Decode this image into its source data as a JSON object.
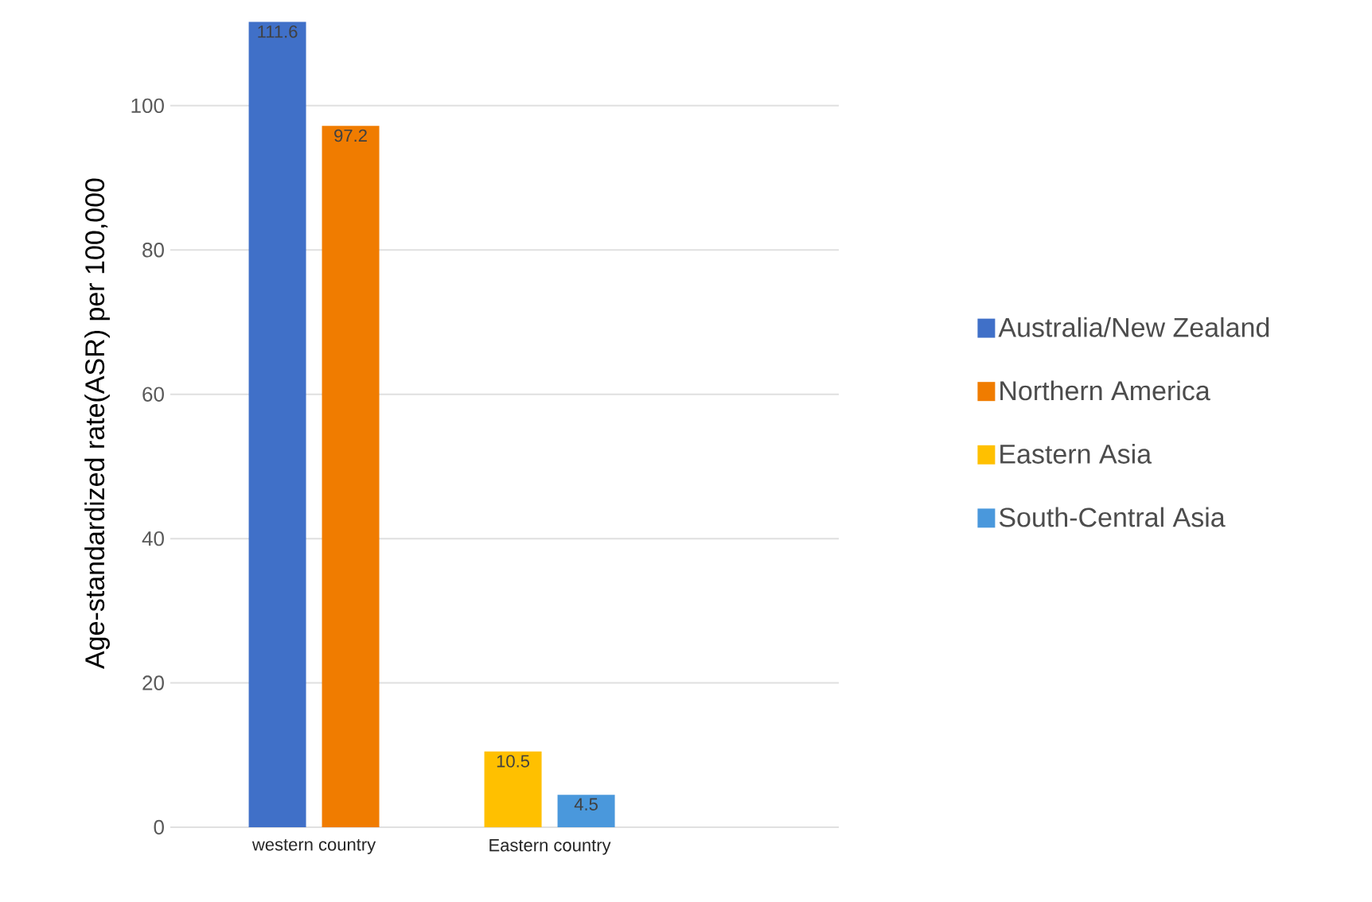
{
  "chart_data": {
    "type": "bar",
    "ylabel": "Age-standardized rate(ASR) per 100,000",
    "categories": [
      "western country",
      "Eastern country"
    ],
    "series": [
      {
        "name": "Australia/New Zealand",
        "color": "#4070c8",
        "values": [
          111.6,
          null
        ]
      },
      {
        "name": "Northern America",
        "color": "#f07c00",
        "values": [
          97.2,
          null
        ]
      },
      {
        "name": "Eastern Asia",
        "color": "#ffc000",
        "values": [
          null,
          10.5
        ]
      },
      {
        "name": "South-Central Asia",
        "color": "#4a98dc",
        "values": [
          null,
          4.5
        ]
      }
    ],
    "ylim": [
      0,
      112
    ],
    "yticks": [
      0,
      20,
      40,
      60,
      80,
      100
    ],
    "grid": "y",
    "legend": "right",
    "data_labels": true
  }
}
